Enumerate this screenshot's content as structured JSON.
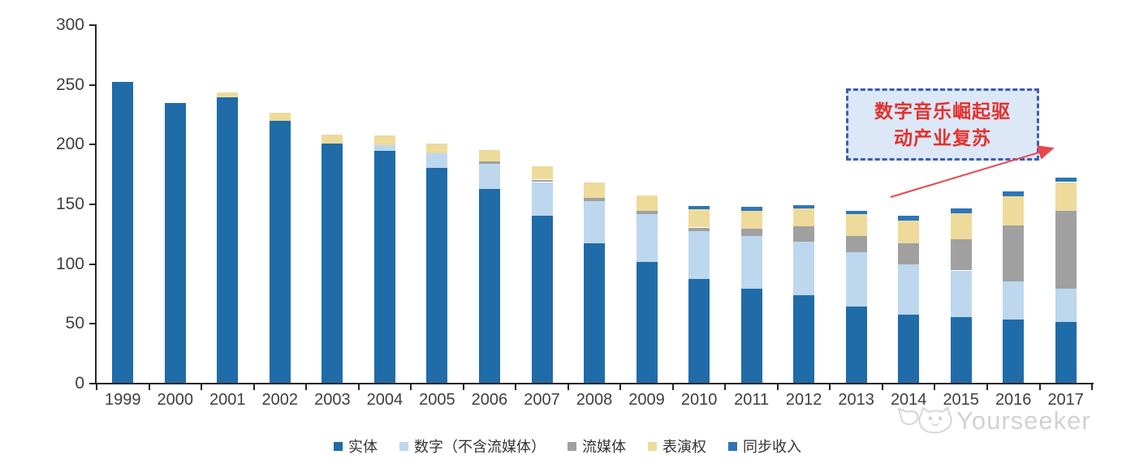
{
  "chart_data": {
    "type": "bar",
    "stacked": true,
    "title": "",
    "xlabel": "",
    "ylabel": "",
    "ylim": [
      0,
      300
    ],
    "yticks": [
      0,
      50,
      100,
      150,
      200,
      250,
      300
    ],
    "grid": false,
    "legend_position": "bottom-center",
    "categories": [
      "1999",
      "2000",
      "2001",
      "2002",
      "2003",
      "2004",
      "2005",
      "2006",
      "2007",
      "2008",
      "2009",
      "2010",
      "2011",
      "2012",
      "2013",
      "2014",
      "2015",
      "2016",
      "2017"
    ],
    "series": [
      {
        "name": "实体",
        "color": "#1f6ca8",
        "values": [
          252,
          234,
          239,
          219,
          200,
          194,
          180,
          162,
          140,
          117,
          101,
          87,
          79,
          73,
          64,
          57,
          55,
          53,
          51
        ]
      },
      {
        "name": "数字（不含流媒体）",
        "color": "#bdd7ee",
        "values": [
          0,
          0,
          0,
          0,
          0,
          5,
          12,
          21,
          28,
          35,
          40,
          40,
          44,
          45,
          45,
          42,
          39,
          32,
          28
        ]
      },
      {
        "name": "流媒体",
        "color": "#a0a0a0",
        "values": [
          0,
          0,
          0,
          0,
          0,
          0,
          0,
          2,
          2,
          3,
          3,
          3,
          6,
          13,
          14,
          18,
          26,
          47,
          65
        ]
      },
      {
        "name": "表演权",
        "color": "#eedb9b",
        "values": [
          0,
          0,
          4,
          7,
          8,
          8,
          8,
          10,
          11,
          13,
          13,
          15,
          15,
          15,
          18,
          19,
          22,
          24,
          24
        ]
      },
      {
        "name": "同步收入",
        "color": "#2e75b6",
        "values": [
          0,
          0,
          0,
          0,
          0,
          0,
          0,
          0,
          0,
          0,
          0,
          3,
          3,
          3,
          3,
          4,
          4,
          4,
          4
        ]
      }
    ]
  },
  "annotation": {
    "line1": "数字音乐崛起驱",
    "line2": "动产业复苏",
    "text_color": "#e3312d",
    "box_fill": "#dce8f7",
    "box_border_color": "#3d5eac",
    "arrow_color": "#e8474b"
  },
  "axis": {
    "line_color": "#262626",
    "label_color": "#3f3f3f"
  },
  "watermark": {
    "text": "Yourseeker",
    "color": "#d2d2d2",
    "icon": "cat-logo-icon"
  }
}
